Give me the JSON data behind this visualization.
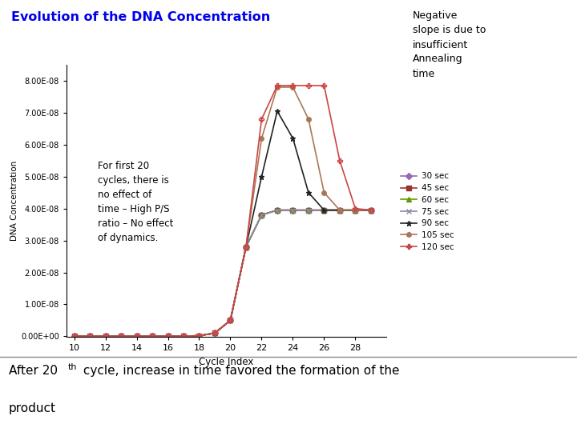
{
  "title": "Evolution of the DNA Concentration",
  "title_color": "#0000EE",
  "xlabel": "Cycle Index",
  "ylabel": "DNA Concentration",
  "xlim": [
    9.5,
    30
  ],
  "ylim": [
    -2e-10,
    8.5e-08
  ],
  "xticks": [
    10,
    12,
    14,
    16,
    18,
    20,
    22,
    24,
    26,
    28
  ],
  "yticks": [
    0,
    1e-08,
    2e-08,
    3e-08,
    4e-08,
    5e-08,
    6e-08,
    7e-08,
    8e-08
  ],
  "ytick_labels": [
    "0.00E+00",
    "1.00E-08",
    "2.00E-08",
    "3.00E-08",
    "4.00E-08",
    "5.00E-08",
    "6.00E-08",
    "7.00E-08",
    "8.00E-08"
  ],
  "annotation_text1": "For first 20\ncycles, there is\nno effect of\ntime – High P/S\nratio – No effect\nof dynamics.",
  "annotation_text2": "Negative\nslope is due to\ninsufficient\nAnnealing\ntime",
  "series": [
    {
      "label": "30 sec",
      "color": "#9966BB",
      "marker": "D",
      "markersize": 4,
      "lw": 1.2
    },
    {
      "label": "45 sec",
      "color": "#993333",
      "marker": "s",
      "markersize": 4,
      "lw": 1.2
    },
    {
      "label": "60 sec",
      "color": "#669900",
      "marker": "^",
      "markersize": 4,
      "lw": 1.2
    },
    {
      "label": "75 sec",
      "color": "#8888AA",
      "marker": "x",
      "markersize": 4,
      "lw": 1.2
    },
    {
      "label": "90 sec",
      "color": "#222222",
      "marker": "*",
      "markersize": 5,
      "lw": 1.2
    },
    {
      "label": "105 sec",
      "color": "#AA7755",
      "marker": "o",
      "markersize": 4,
      "lw": 1.2
    },
    {
      "label": "120 sec",
      "color": "#CC4444",
      "marker": "P",
      "markersize": 4,
      "lw": 1.2
    }
  ],
  "cycle_index": [
    10,
    11,
    12,
    13,
    14,
    15,
    16,
    17,
    18,
    19,
    20,
    21,
    22,
    23,
    24,
    25,
    26,
    27,
    28,
    29
  ],
  "data_30sec": [
    0,
    0,
    0,
    0,
    0,
    0,
    0,
    5e-11,
    2e-10,
    1e-09,
    5e-09,
    2.8e-08,
    3.8e-08,
    3.95e-08,
    3.95e-08,
    3.95e-08,
    3.95e-08,
    3.95e-08,
    3.95e-08,
    3.95e-08
  ],
  "data_45sec": [
    0,
    0,
    0,
    0,
    0,
    0,
    0,
    5e-11,
    2e-10,
    1e-09,
    5e-09,
    2.8e-08,
    3.8e-08,
    3.95e-08,
    3.95e-08,
    3.95e-08,
    3.95e-08,
    3.95e-08,
    3.95e-08,
    3.95e-08
  ],
  "data_60sec": [
    0,
    0,
    0,
    0,
    0,
    0,
    0,
    5e-11,
    2e-10,
    1e-09,
    5e-09,
    2.8e-08,
    3.8e-08,
    3.95e-08,
    3.95e-08,
    3.95e-08,
    3.95e-08,
    3.95e-08,
    3.95e-08,
    3.95e-08
  ],
  "data_75sec": [
    0,
    0,
    0,
    0,
    0,
    0,
    0,
    5e-11,
    2e-10,
    1e-09,
    5e-09,
    2.8e-08,
    3.8e-08,
    3.95e-08,
    3.95e-08,
    3.95e-08,
    3.95e-08,
    3.95e-08,
    3.95e-08,
    3.95e-08
  ],
  "data_90sec": [
    0,
    0,
    0,
    0,
    0,
    0,
    0,
    5e-11,
    2e-10,
    1e-09,
    5e-09,
    2.8e-08,
    5e-08,
    7.05e-08,
    6.2e-08,
    4.5e-08,
    3.95e-08,
    3.95e-08,
    3.95e-08,
    3.95e-08
  ],
  "data_105sec": [
    0,
    0,
    0,
    0,
    0,
    0,
    0,
    5e-11,
    2e-10,
    1e-09,
    5e-09,
    2.8e-08,
    6.2e-08,
    7.8e-08,
    7.8e-08,
    6.8e-08,
    4.5e-08,
    3.95e-08,
    3.95e-08,
    3.95e-08
  ],
  "data_120sec": [
    0,
    0,
    0,
    0,
    0,
    0,
    0,
    5e-11,
    2e-10,
    1e-09,
    5e-09,
    2.8e-08,
    6.8e-08,
    7.85e-08,
    7.85e-08,
    7.85e-08,
    7.85e-08,
    5.5e-08,
    4e-08,
    3.95e-08
  ]
}
